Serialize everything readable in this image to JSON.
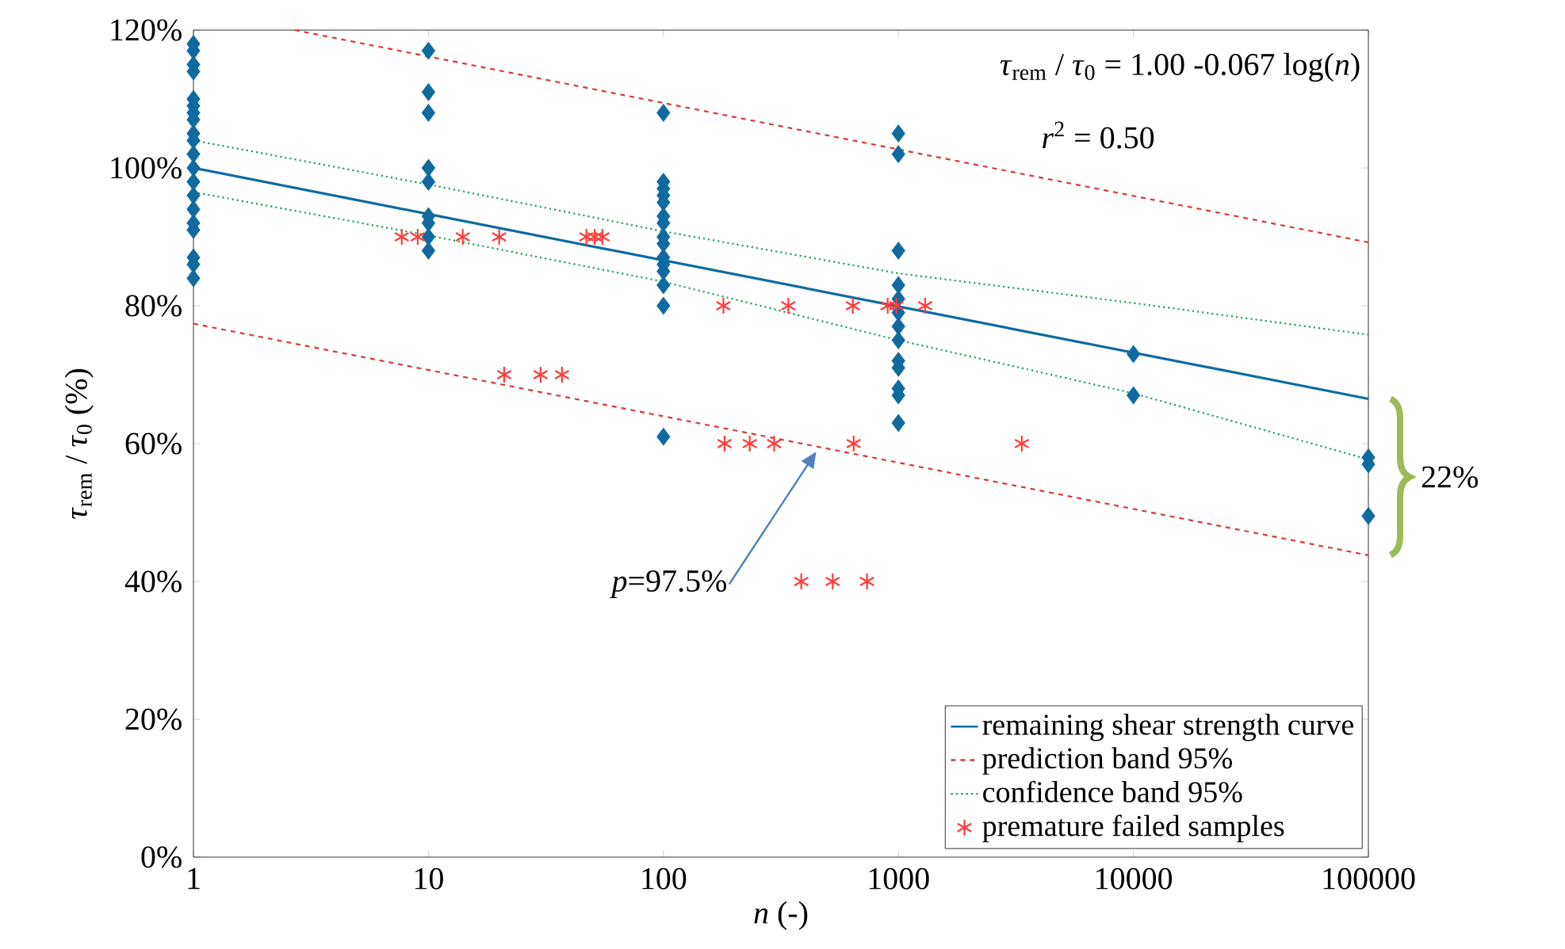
{
  "chart_data": {
    "type": "scatter",
    "xlabel": "*n* (-)",
    "ylabel": "*τ*$_{rem}$ / *τ*$_{0}$ (%)",
    "log": "x",
    "xlim": [
      1,
      100000
    ],
    "xticks": [
      1,
      10,
      100,
      1000,
      10000,
      100000
    ],
    "ylim": [
      0,
      120
    ],
    "yticks": [
      {
        "value": 0,
        "label": "0%"
      },
      {
        "value": 20,
        "label": "20%"
      },
      {
        "value": 40,
        "label": "40%"
      },
      {
        "value": 60,
        "label": "60%"
      },
      {
        "value": 80,
        "label": "80%"
      },
      {
        "value": 100,
        "label": "100%"
      },
      {
        "value": 120,
        "label": "120%"
      }
    ],
    "legend": "bottom right",
    "annotations": [
      "*τ*$_{rem}$ / *τ*$_{0}$ = 1.00 -0.067 log(*n*)",
      "*r*$^{2}$ = 0.50",
      "*p*=97.5%",
      "22%"
    ],
    "series": [
      {
        "color": "#0f6aa0",
        "marker": "diamond",
        "x": [
          1,
          1,
          1,
          1,
          1,
          1,
          1,
          1,
          1,
          1,
          1,
          1,
          1,
          1,
          1,
          1,
          1,
          1,
          1,
          1,
          10,
          10,
          10,
          10,
          10,
          10,
          10,
          10,
          10,
          100,
          100,
          100,
          100,
          100,
          100,
          100,
          100,
          100,
          100,
          100,
          100,
          100,
          100,
          100,
          1000,
          1000,
          1000,
          1000,
          1000,
          1000,
          1000,
          1000,
          1000,
          1000,
          1000,
          1000,
          1000,
          10000,
          10000,
          100000,
          100000,
          100000
        ],
        "values": [
          118,
          117,
          115,
          114,
          110,
          109,
          108,
          107,
          105,
          104,
          102,
          100,
          98,
          96,
          94,
          92,
          91,
          87,
          86,
          84,
          117,
          111,
          108,
          100,
          98,
          93,
          92,
          90,
          88,
          108,
          98,
          97,
          96,
          95,
          93,
          92,
          90,
          89,
          87,
          86,
          85,
          83,
          80,
          61,
          105,
          102,
          88,
          83,
          81,
          79,
          77,
          75,
          72,
          71,
          68,
          67,
          63,
          73,
          67,
          58,
          57,
          49.5
        ]
      },
      {
        "type": "line",
        "name": "remaining shear strength curve",
        "color": "#0f6aa0",
        "line_style": "solid",
        "x": [
          1,
          100000
        ],
        "values": [
          100,
          66.5
        ]
      },
      {
        "type": "line",
        "name": "prediction band 95%",
        "color": "#d9383a",
        "line_style": "dashed",
        "x": [
          2.7,
          100000
        ],
        "values": [
          120,
          89.2
        ]
      },
      {
        "type": "line",
        "color": "#d9383a",
        "line_style": "dashed",
        "x": [
          1,
          100000
        ],
        "values": [
          77.4,
          43.8
        ]
      },
      {
        "type": "line",
        "name": "confidence band 95%",
        "color": "#1f9e5a",
        "line_style": "dotted",
        "x": [
          1,
          10,
          100,
          1000,
          10000,
          100000
        ],
        "values": [
          104,
          97.6,
          90.8,
          84.7,
          80.4,
          75.8
        ]
      },
      {
        "type": "line",
        "color": "#1f9e5a",
        "line_style": "dotted",
        "x": [
          1,
          10,
          100,
          1000,
          10000,
          100000
        ],
        "values": [
          96.5,
          90.2,
          83.5,
          75,
          67.3,
          57.7
        ]
      },
      {
        "name": "premature failed samples",
        "color": "#ff3b3b",
        "marker": "cross",
        "x": [
          7.7,
          9,
          14,
          20,
          47,
          51,
          55,
          21,
          30,
          37,
          180,
          340,
          640,
          900,
          980,
          1300,
          182,
          233,
          296,
          645,
          3350,
          386,
          525,
          735
        ],
        "values": [
          90,
          90,
          90,
          90,
          90,
          90,
          90,
          70,
          70,
          70,
          80,
          80,
          80,
          80,
          80,
          80,
          60,
          60,
          60,
          60,
          60,
          40,
          40,
          40
        ]
      }
    ]
  }
}
